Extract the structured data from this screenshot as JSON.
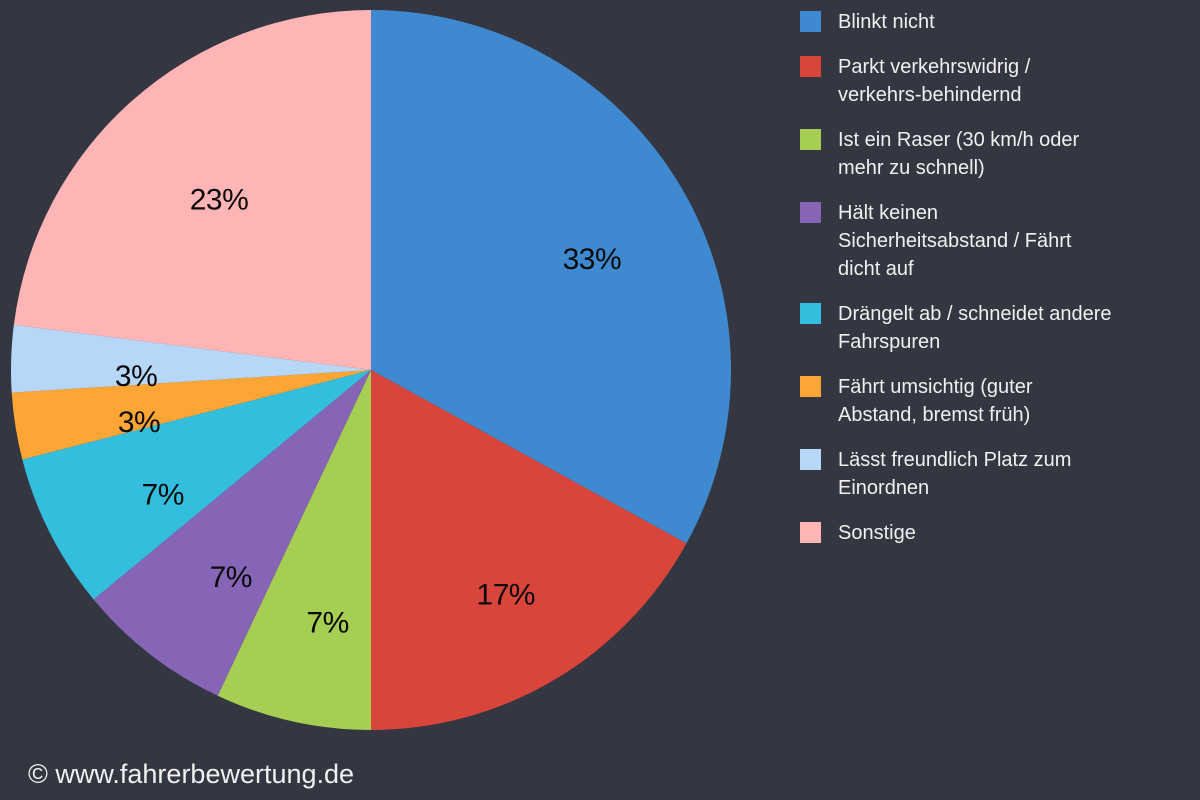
{
  "chart_data": {
    "type": "pie",
    "title": "",
    "legend_position": "right",
    "start_angle_deg": 0,
    "direction": "clockwise",
    "total": 100,
    "slices": [
      {
        "label": "Blinkt nicht",
        "legend_label": "Blinkt nicht",
        "value": 33,
        "pct_label": "33%",
        "color": "#3e89cf"
      },
      {
        "label": "Parkt verkehrswidrig / verkehrs-behindernd",
        "legend_label": "Parkt verkehrswidrig /\nverkehrs-behindernd",
        "value": 17,
        "pct_label": "17%",
        "color": "#d9453a"
      },
      {
        "label": "Ist ein Raser (30 km/h oder mehr zu schnell)",
        "legend_label": "Ist ein Raser (30 km/h oder\nmehr zu schnell)",
        "value": 7,
        "pct_label": "7%",
        "color": "#a6ce52"
      },
      {
        "label": "Hält keinen Sicherheitsabstand / Fährt dicht auf",
        "legend_label": "Hält keinen\nSicherheitsabstand / Fährt\ndicht auf",
        "value": 7,
        "pct_label": "7%",
        "color": "#8765b6"
      },
      {
        "label": "Drängelt ab / schneidet andere Fahrspuren",
        "legend_label": "Drängelt ab / schneidet andere\nFahrspuren",
        "value": 7,
        "pct_label": "7%",
        "color": "#33bedd"
      },
      {
        "label": "Fährt umsichtig (guter Abstand, bremst früh)",
        "legend_label": "Fährt umsichtig (guter\nAbstand, bremst früh)",
        "value": 3,
        "pct_label": "3%",
        "color": "#fda535"
      },
      {
        "label": "Lässt freundlich Platz zum Einordnen",
        "legend_label": "Lässt freundlich Platz zum\nEinordnen",
        "value": 3,
        "pct_label": "3%",
        "color": "#b7d7f8"
      },
      {
        "label": "Sonstige",
        "legend_label": "Sonstige",
        "value": 23,
        "pct_label": "23%",
        "color": "#ffb5b5"
      }
    ]
  },
  "footer": {
    "credit": "© www.fahrerbewertung.de"
  },
  "colors": {
    "background": "#343741",
    "legend_text": "#f0f0f0",
    "slice_label_text": "#0a0a0a"
  }
}
